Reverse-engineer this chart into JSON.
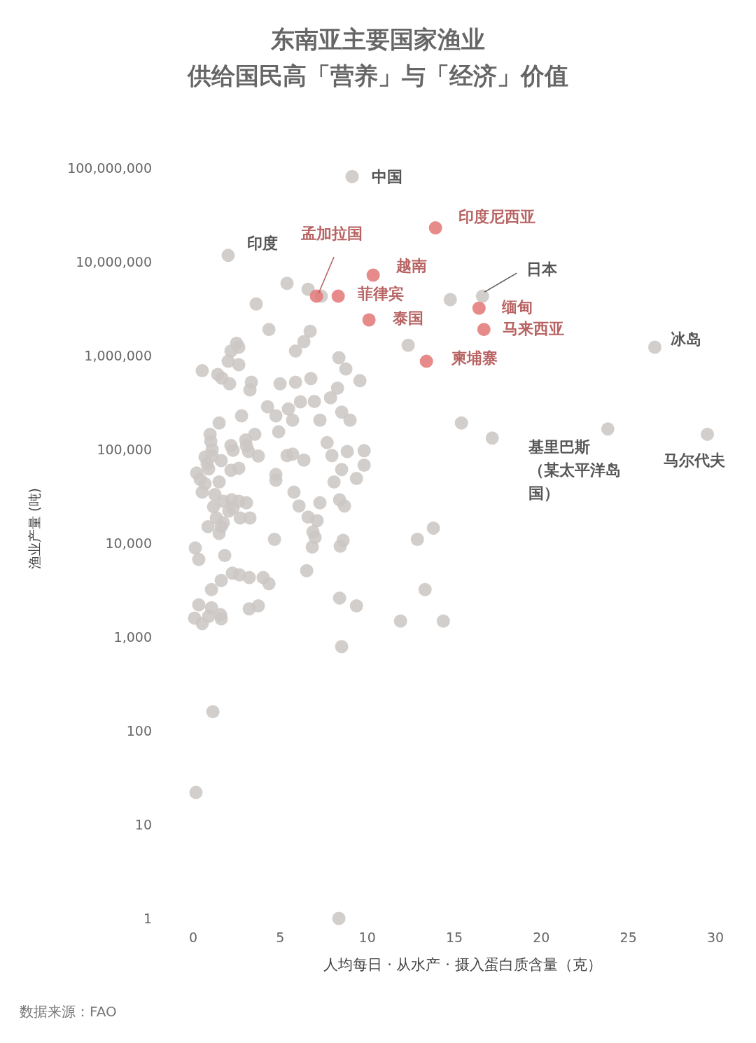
{
  "chart_data": {
    "type": "scatter",
    "title": "东南亚主要国家渔业供给国民高「营养」与「经济」价值",
    "xlabel": "人均每日 · 从水产 · 摄入蛋白质含量（克）",
    "ylabel": "渔业产量 (吨)",
    "log": "y",
    "xlim": [
      0,
      30
    ],
    "xticks": [
      0,
      5,
      10,
      15,
      20,
      25,
      30
    ],
    "ylim": [
      1,
      100000000
    ],
    "yticks": [
      1,
      10,
      100,
      {
        "value": 1000,
        "label": "1,000"
      },
      {
        "value": 10000,
        "label": "10,000"
      },
      {
        "value": 100000,
        "label": "100,000"
      },
      {
        "value": 1000000,
        "label": "1,000,000"
      },
      {
        "value": 10000000,
        "label": "10,000,000"
      },
      {
        "value": 100000000,
        "label": "100,000,000"
      }
    ],
    "marker": "circle",
    "tick_labels": "xy",
    "series": [
      {
        "color": "#ccc7c4",
        "x": [
          9.13,
          2.01,
          16.62,
          26.52,
          23.82,
          29.54,
          5.39,
          6.6,
          7.36,
          3.62,
          14.77,
          4.35,
          6.72,
          6.36,
          5.88,
          12.35,
          2.49,
          2.17,
          2.62,
          2.01,
          2.62,
          0.52,
          1.41,
          1.65,
          2.09,
          3.34,
          3.26,
          4.99,
          5.88,
          6.76,
          8.37,
          8.77,
          9.58,
          8.29,
          4.27,
          5.47,
          4.75,
          6.16,
          6.96,
          7.89,
          8.53,
          9.01,
          7.28,
          5.71,
          2.78,
          1.49,
          4.91,
          15.41,
          17.18,
          7.69,
          8.85,
          9.82,
          9.82,
          8.53,
          7.97,
          5.39,
          5.71,
          6.36,
          4.75,
          4.75,
          8.09,
          9.38,
          5.79,
          6.08,
          7.28,
          8.41,
          8.69,
          6.6,
          7.12,
          6.88,
          7.0,
          6.84,
          8.61,
          8.45,
          4.67,
          6.52,
          12.88,
          13.8,
          13.32,
          8.41,
          9.38,
          11.91,
          14.37,
          8.53,
          1.13,
          0.16,
          8.37,
          0.97,
          1.01,
          1.09,
          1.09,
          2.17,
          2.29,
          3.02,
          3.54,
          3.06,
          3.18,
          3.74,
          2.62,
          2.17,
          1.61,
          0.68,
          0.8,
          0.89,
          0.2,
          0.4,
          0.68,
          0.52,
          1.49,
          1.25,
          1.73,
          2.21,
          2.62,
          3.06,
          2.29,
          2.05,
          1.17,
          1.33,
          1.73,
          1.61,
          0.85,
          1.49,
          2.7,
          3.26,
          0.12,
          0.32,
          1.81,
          2.25,
          2.66,
          1.61,
          3.22,
          4.02,
          4.35,
          1.05,
          0.32,
          1.05,
          3.22,
          3.74,
          0.08,
          0.52,
          0.89,
          1.57,
          1.61
        ],
        "values": [
          81000000,
          11700000,
          4300000,
          1230000,
          165000,
          145000,
          5900000,
          5100000,
          4300000,
          3550000,
          3950000,
          1900000,
          1820000,
          1410000,
          1120000,
          1290000,
          1350000,
          1120000,
          1230000,
          870000,
          800000,
          690000,
          630000,
          575000,
          500000,
          520000,
          430000,
          500000,
          520000,
          570000,
          950000,
          720000,
          540000,
          450000,
          285000,
          270000,
          228000,
          322000,
          325000,
          355000,
          250000,
          205000,
          205000,
          205000,
          228000,
          191000,
          154000,
          191000,
          132000,
          118000,
          95000,
          97000,
          68000,
          61000,
          86000,
          86000,
          89000,
          77000,
          54000,
          47000,
          45000,
          49000,
          35000,
          25000,
          27000,
          29000,
          25000,
          19000,
          17400,
          13200,
          11500,
          9100,
          10700,
          9300,
          11000,
          5100,
          11000,
          14500,
          3200,
          2600,
          2150,
          1480,
          1480,
          790,
          160,
          22,
          1,
          145000,
          122000,
          100000,
          85000,
          110000,
          98000,
          126000,
          145000,
          109000,
          95000,
          85000,
          63000,
          60000,
          76000,
          83000,
          70000,
          62000,
          56000,
          48000,
          43000,
          35000,
          45000,
          33000,
          28000,
          29000,
          28000,
          27000,
          23700,
          22000,
          24500,
          18600,
          16500,
          15000,
          15000,
          12700,
          18600,
          18600,
          8900,
          6700,
          7400,
          4800,
          4600,
          4000,
          4300,
          4300,
          3700,
          3200,
          2200,
          2050,
          2000,
          2150,
          1590,
          1390,
          1660,
          1730,
          1560
        ]
      },
      {
        "color": "#e47a7a",
        "x": [
          7.08,
          8.33,
          10.34,
          10.1,
          13.92,
          16.42,
          16.7,
          13.4
        ],
        "values": [
          4300000,
          4300000,
          7200000,
          2400000,
          23000000,
          3200000,
          1900000,
          870000
        ]
      }
    ],
    "annotations": [
      {
        "text": "中国",
        "x": 9.13,
        "y": 81000000
      },
      {
        "text": "印度",
        "x": 2.01,
        "y": 11700000
      },
      {
        "text": "孟加拉国",
        "x": 7.08,
        "y": 4300000
      },
      {
        "text": "菲律宾",
        "x": 8.33,
        "y": 4300000
      },
      {
        "text": "越南",
        "x": 10.34,
        "y": 7200000
      },
      {
        "text": "泰国",
        "x": 10.1,
        "y": 2400000
      },
      {
        "text": "印度尼西亚",
        "x": 13.92,
        "y": 23000000
      },
      {
        "text": "日本",
        "x": 16.62,
        "y": 4300000
      },
      {
        "text": "缅甸",
        "x": 16.42,
        "y": 3200000
      },
      {
        "text": "马来西亚",
        "x": 16.7,
        "y": 1900000
      },
      {
        "text": "柬埔寨",
        "x": 13.4,
        "y": 870000
      },
      {
        "text": "冰岛",
        "x": 26.52,
        "y": 1230000
      },
      {
        "text": "基里巴斯（某太平洋岛国）",
        "x": 23.82,
        "y": 165000
      },
      {
        "text": "马尔代夫",
        "x": 29.54,
        "y": 145000
      },
      "数据来源：FAO"
    ]
  }
}
